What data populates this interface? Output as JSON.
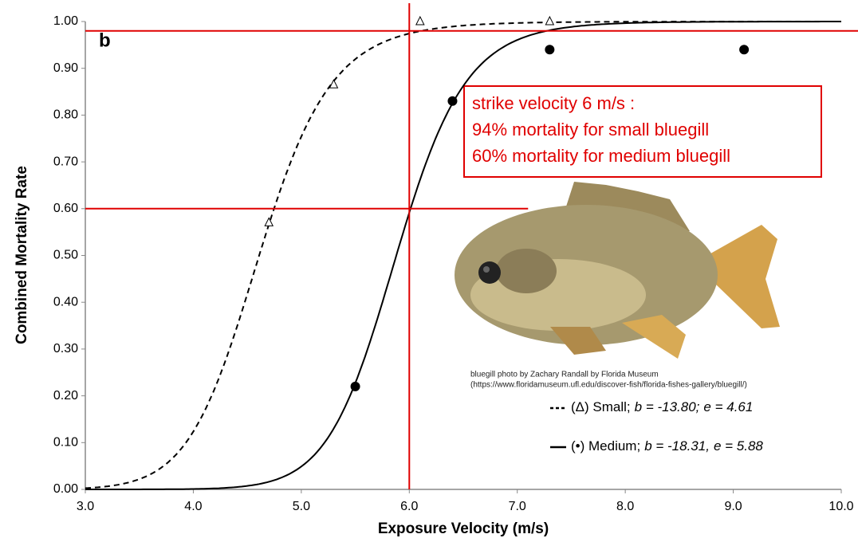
{
  "chart_data": {
    "type": "scatter",
    "panel_label": "b",
    "xlabel": "Exposure Velocity (m/s)",
    "ylabel": "Combined Mortality Rate",
    "xlim": [
      3,
      10
    ],
    "xticks": [
      {
        "value": 3,
        "label": "3.0"
      },
      {
        "value": 4,
        "label": "4.0"
      },
      {
        "value": 5,
        "label": "5.0"
      },
      {
        "value": 6,
        "label": "6.0"
      },
      {
        "value": 7,
        "label": "7.0"
      },
      {
        "value": 8,
        "label": "8.0"
      },
      {
        "value": 9,
        "label": "9.0"
      },
      {
        "value": 10,
        "label": "10.0"
      }
    ],
    "ylim": [
      0,
      1
    ],
    "yticks": [
      {
        "value": 0,
        "label": "0.00"
      },
      {
        "value": 0.1,
        "label": "0.10"
      },
      {
        "value": 0.2,
        "label": "0.20"
      },
      {
        "value": 0.3,
        "label": "0.30"
      },
      {
        "value": 0.4,
        "label": "0.40"
      },
      {
        "value": 0.5,
        "label": "0.50"
      },
      {
        "value": 0.6,
        "label": "0.60"
      },
      {
        "value": 0.7,
        "label": "0.70"
      },
      {
        "value": 0.8,
        "label": "0.80"
      },
      {
        "value": 0.9,
        "label": "0.90"
      },
      {
        "value": 1,
        "label": "1.00"
      }
    ],
    "series": [
      {
        "name": "(Δ) Small;",
        "marker": "triangle",
        "line": "dashed",
        "color": "#000000",
        "x": [
          4.7,
          5.3,
          6.1,
          7.3
        ],
        "values": [
          0.57,
          0.865,
          1.0,
          1.0
        ],
        "fit": [
          {
            "value": -13.8,
            "label": "b = -13.80;"
          },
          {
            "value": 4.61,
            "label": "e = 4.61"
          }
        ]
      },
      {
        "name": "(•) Medium;",
        "marker": "circle",
        "line": "solid",
        "color": "#000000",
        "x": [
          5.5,
          6.4,
          7.3,
          9.1
        ],
        "values": [
          0.22,
          0.83,
          0.94,
          0.94
        ],
        "fit": [
          {
            "value": -18.31,
            "label": "b = -18.31,"
          },
          {
            "value": 5.88,
            "label": "e = 5.88"
          }
        ]
      }
    ],
    "reference_lines": {
      "color": "#e00000",
      "x": 6,
      "horizontal": [
        {
          "y": 0.98
        },
        {
          "y": 0.6,
          "x_end": 7.1
        }
      ]
    },
    "annotation": [
      "strike velocity 6 m/s :",
      "94% mortality for small bluegill",
      "60% mortality for medium bluegill"
    ],
    "photo_credit": [
      "bluegill photo by Zachary Randall by Florida Museum",
      "(https://www.floridamuseum.ufl.edu/discover-fish/florida-fishes-gallery/bluegill/)"
    ]
  }
}
